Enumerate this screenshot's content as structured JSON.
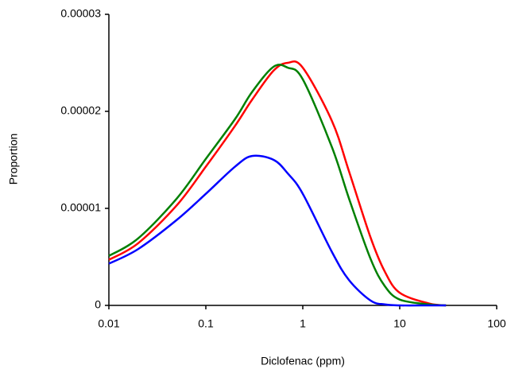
{
  "chart_data": {
    "type": "line",
    "x_label": "Diclofenac (ppm)",
    "y_label": "Proportion",
    "x": [
      0.01,
      0.02,
      0.05,
      0.1,
      0.2,
      0.3,
      0.5,
      0.7,
      1,
      2,
      3,
      5,
      7,
      10,
      20,
      30
    ],
    "series": [
      {
        "color": "#ff0000",
        "values": [
          4.7e-06,
          6.4e-06,
          1.03e-05,
          1.43e-05,
          1.85e-05,
          2.12e-05,
          2.42e-05,
          2.5e-05,
          2.45e-05,
          1.9e-05,
          1.38e-05,
          7e-06,
          3.5e-06,
          1.3e-06,
          2e-07,
          0
        ]
      },
      {
        "color": "#008000",
        "values": [
          5.1e-06,
          6.9e-06,
          1.1e-05,
          1.51e-05,
          1.92e-05,
          2.2e-05,
          2.46e-05,
          2.45e-05,
          2.33e-05,
          1.63e-05,
          1.1e-05,
          4.8e-06,
          2e-06,
          6e-07,
          1e-07,
          0
        ]
      },
      {
        "color": "#0000ff",
        "values": [
          4.3e-06,
          5.8e-06,
          8.8e-06,
          1.15e-05,
          1.43e-05,
          1.54e-05,
          1.5e-05,
          1.36e-05,
          1.15e-05,
          5.5e-06,
          2.6e-06,
          5e-07,
          1e-07,
          0,
          0,
          0
        ]
      }
    ],
    "xlim": [
      0.01,
      100
    ],
    "xticks": [
      0.01,
      0.1,
      1,
      10,
      100
    ],
    "xscale": "log",
    "ylim": [
      0,
      3e-05
    ],
    "yticks": [
      0,
      1e-05,
      2e-05,
      3e-05
    ]
  }
}
